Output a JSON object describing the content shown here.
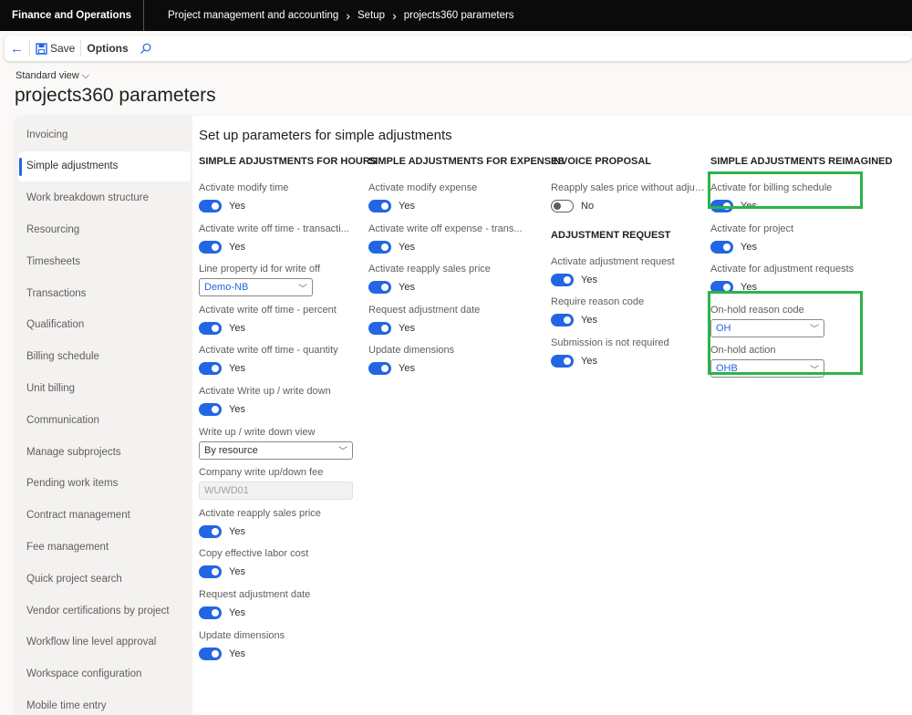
{
  "topbar": {
    "brand": "Finance and Operations",
    "breadcrumb": [
      "Project management and accounting",
      "Setup",
      "projects360 parameters"
    ]
  },
  "actionbar": {
    "save": "Save",
    "options": "Options"
  },
  "page": {
    "view": "Standard view",
    "title": "projects360 parameters",
    "section_title": "Set up parameters for simple adjustments"
  },
  "sidebar": {
    "selected": "Simple adjustments",
    "items": [
      "Invoicing",
      "Simple adjustments",
      "Work breakdown structure",
      "Resourcing",
      "Timesheets",
      "Transactions",
      "Qualification",
      "Billing schedule",
      "Unit billing",
      "Communication",
      "Manage subprojects",
      "Pending work items",
      "Contract management",
      "Fee management",
      "Quick project search",
      "Vendor certifications by project",
      "Workflow line level approval",
      "Workspace configuration",
      "Mobile time entry"
    ]
  },
  "accent": "#2266e3",
  "highlight": "#2db34a",
  "columns": [
    {
      "groups": [
        {
          "title": "SIMPLE ADJUSTMENTS FOR HOURS",
          "fields": [
            {
              "label": "Activate modify time",
              "type": "toggle",
              "on": true,
              "value": "Yes"
            },
            {
              "label": "Activate write off time - transacti...",
              "type": "toggle",
              "on": true,
              "value": "Yes"
            },
            {
              "label": "Line property id for write off",
              "type": "dropdown",
              "value": "Demo-NB"
            },
            {
              "label": "Activate write off time - percent",
              "type": "toggle",
              "on": true,
              "value": "Yes"
            },
            {
              "label": "Activate write off time - quantity",
              "type": "toggle",
              "on": true,
              "value": "Yes"
            },
            {
              "label": "Activate Write up / write down",
              "type": "toggle",
              "on": true,
              "value": "Yes"
            },
            {
              "label": "Write up / write down view",
              "type": "dropdown-wide",
              "value": "By resource"
            },
            {
              "label": "Company write up/down fee",
              "type": "readonly",
              "value": "WUWD01"
            },
            {
              "label": "Activate reapply sales price",
              "type": "toggle",
              "on": true,
              "value": "Yes"
            },
            {
              "label": "Copy effective labor cost",
              "type": "toggle",
              "on": true,
              "value": "Yes"
            },
            {
              "label": "Request adjustment date",
              "type": "toggle",
              "on": true,
              "value": "Yes"
            },
            {
              "label": "Update dimensions",
              "type": "toggle",
              "on": true,
              "value": "Yes"
            }
          ]
        }
      ]
    },
    {
      "groups": [
        {
          "title": "SIMPLE ADJUSTMENTS FOR EXPENSES",
          "fields": [
            {
              "label": "Activate modify expense",
              "type": "toggle",
              "on": true,
              "value": "Yes"
            },
            {
              "label": "Activate write off expense - trans...",
              "type": "toggle",
              "on": true,
              "value": "Yes"
            },
            {
              "label": "Activate reapply sales price",
              "type": "toggle",
              "on": true,
              "value": "Yes"
            },
            {
              "label": "Request adjustment date",
              "type": "toggle",
              "on": true,
              "value": "Yes"
            },
            {
              "label": "Update dimensions",
              "type": "toggle",
              "on": true,
              "value": "Yes"
            }
          ]
        }
      ]
    },
    {
      "groups": [
        {
          "title": "INVOICE PROPOSAL",
          "fields": [
            {
              "label": "Reapply sales price without adjus...",
              "type": "toggle",
              "on": false,
              "value": "No"
            }
          ]
        },
        {
          "title": "ADJUSTMENT REQUEST",
          "fields": [
            {
              "label": "Activate adjustment request",
              "type": "toggle",
              "on": true,
              "value": "Yes"
            },
            {
              "label": "Require reason code",
              "type": "toggle",
              "on": true,
              "value": "Yes"
            },
            {
              "label": "Submission is not required",
              "type": "toggle",
              "on": true,
              "value": "Yes"
            }
          ]
        }
      ]
    },
    {
      "groups": [
        {
          "title": "SIMPLE ADJUSTMENTS REIMAGINED",
          "fields": [
            {
              "label": "Activate for billing schedule",
              "type": "toggle",
              "on": true,
              "value": "Yes"
            },
            {
              "label": "Activate for project",
              "type": "toggle",
              "on": true,
              "value": "Yes"
            },
            {
              "label": "Activate for adjustment requests",
              "type": "toggle",
              "on": true,
              "value": "Yes"
            },
            {
              "label": "On-hold reason code",
              "type": "dropdown",
              "value": "OH"
            },
            {
              "label": "On-hold action",
              "type": "dropdown",
              "value": "OHB"
            }
          ]
        }
      ]
    }
  ]
}
